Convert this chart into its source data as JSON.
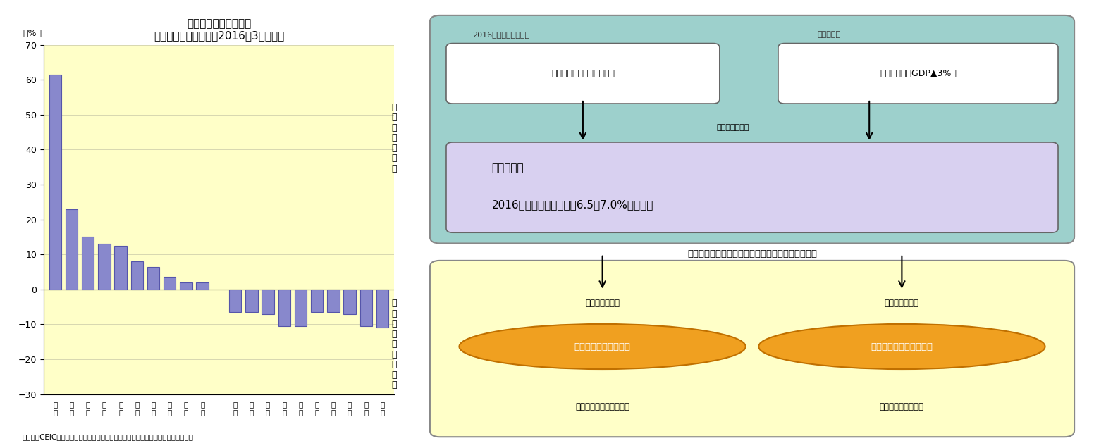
{
  "title": "直近高値からの変化率",
  "subtitle": "（新築商品住宅価格、2016年3月時点）",
  "ylabel": "（%）",
  "caption": "（資料）CEIC（出所は中国国家統計局）のデータを元にニッセイ基礎研究所で作成",
  "categories": [
    "深\n圳",
    "上\n海",
    "廈\n門",
    "南\n京",
    "北\n京",
    "広\n州",
    "合\n肥",
    "鄭\n州",
    "天\n津",
    "武\n漢",
    "",
    "韶\n関",
    "瀘\n州",
    "濰\n陽",
    "蚌\n埠",
    "包\n頭",
    "湛\n江",
    "桂\n林",
    "丹\n東",
    "錦\n州",
    "温\n州"
  ],
  "values": [
    61.5,
    23.0,
    15.0,
    13.0,
    12.5,
    8.0,
    6.5,
    3.5,
    2.0,
    2.0,
    null,
    -6.5,
    -6.5,
    -7.0,
    -10.5,
    -10.5,
    -6.5,
    -6.5,
    -7.0,
    -10.5,
    -11.0
  ],
  "bar_color": "#8888cc",
  "bar_edge_color": "#5555aa",
  "bg_color": "#ffffc8",
  "ylim": [
    -30,
    70
  ],
  "yticks": [
    -30,
    -20,
    -10,
    0,
    10,
    20,
    30,
    40,
    50,
    60,
    70
  ],
  "right_panel": {
    "top_bg": "#9dd0cc",
    "top_title_minus": "2016年のマイナス材料",
    "top_title_plus": "プラス材料",
    "box1_text": "過剰設備・過剰債務の整理",
    "box2_text": "財政出動（対GDP▲3%）",
    "arrow_label": "両者を勘案して",
    "box3_line1": "全人代で、",
    "box3_line2": "2016年の成長率目標を『6.5～7.0%』に設定",
    "box3_bg": "#d8d0f0",
    "middle_text": "目標の下限を割り込む恐れが生じた場合の対応は？",
    "bottom_bg": "#ffffc8",
    "left_label_top": "金融政策で対応",
    "right_label_top": "財政政策で対応",
    "oval1_text": "住宅バブル膨張を許容",
    "oval2_text": "住宅バブルの抑制を優先",
    "sub1_text": "（財政の健全性を優先）",
    "sub2_text": "（財政赤字が拡大）",
    "oval_color": "#f0a020",
    "oval_edge_color": "#c07000"
  }
}
